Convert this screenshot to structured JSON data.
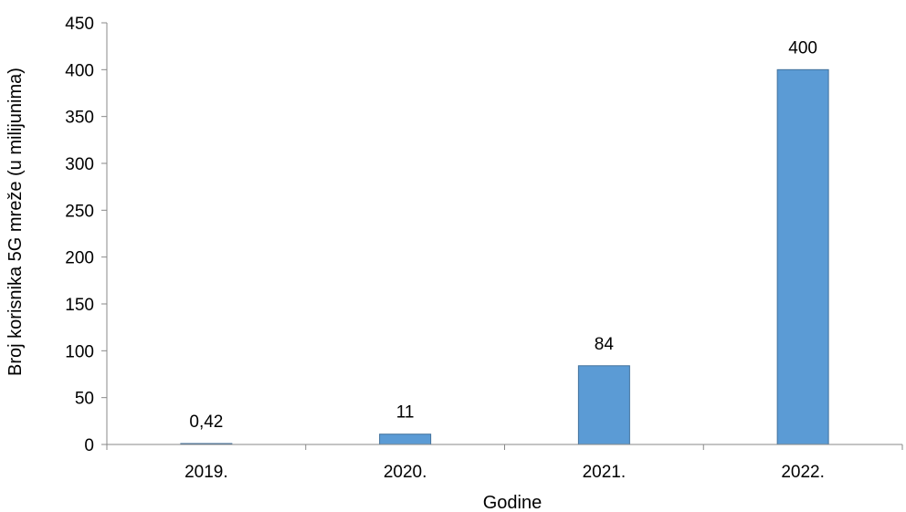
{
  "chart_data": {
    "type": "bar",
    "title": "",
    "xlabel": "Godine",
    "ylabel": "Broj korisnika 5G mreže (u milijunima)",
    "categories": [
      "2019.",
      "2020.",
      "2021.",
      "2022."
    ],
    "values": [
      0.42,
      11,
      84,
      400
    ],
    "data_labels": [
      "0,42",
      "11",
      "84",
      "400"
    ],
    "ylim": [
      0,
      450
    ],
    "yticks": [
      0,
      50,
      100,
      150,
      200,
      250,
      300,
      350,
      400,
      450
    ],
    "grid": false,
    "legend": "none",
    "bar_color": "#5b9bd5",
    "bar_edge_color": "#41719c"
  }
}
